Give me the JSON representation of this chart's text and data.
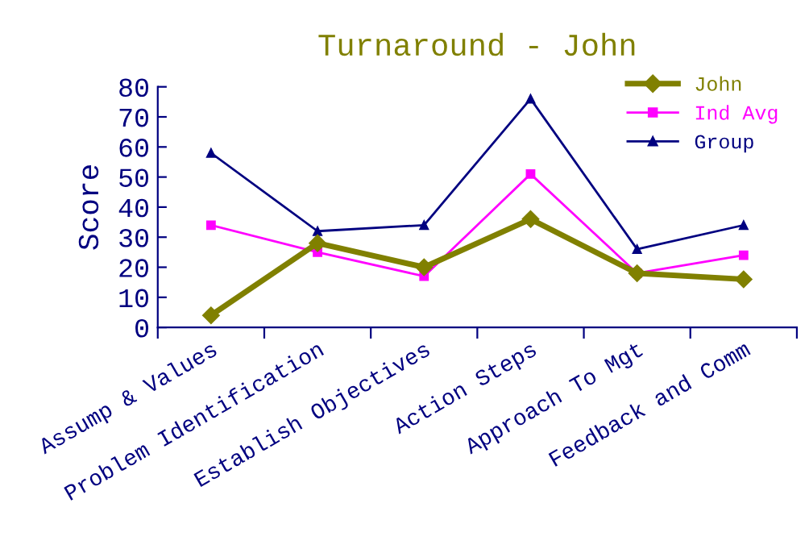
{
  "chart_data": {
    "type": "line",
    "title": "Turnaround - John",
    "ylabel": "Score",
    "categories": [
      "Assump & Values",
      "Problem Identification",
      "Establish Objectives",
      "Action Steps",
      "Approach To Mgt",
      "Feedback and Comm"
    ],
    "series": [
      {
        "name": "John",
        "color": "#808000",
        "marker": "diamond",
        "values": [
          4,
          28,
          20,
          36,
          18,
          16
        ]
      },
      {
        "name": "Ind Avg",
        "color": "#ff00ff",
        "marker": "square",
        "values": [
          34,
          25,
          17,
          51,
          18,
          24
        ]
      },
      {
        "name": "Group",
        "color": "#000080",
        "marker": "triangle",
        "values": [
          58,
          32,
          34,
          76,
          26,
          34
        ]
      }
    ],
    "ylim": [
      0,
      80
    ],
    "yticks": [
      0,
      10,
      20,
      30,
      40,
      50,
      60,
      70,
      80
    ],
    "grid": false,
    "legend": "top right",
    "line_style": "solid"
  }
}
